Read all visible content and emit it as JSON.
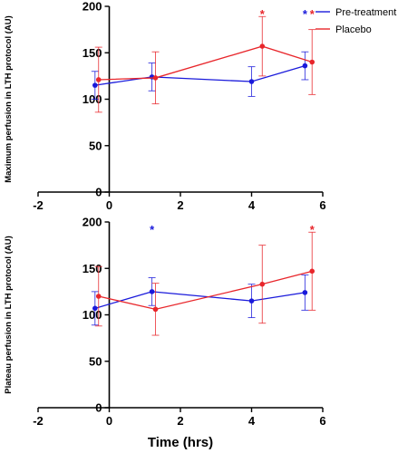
{
  "colors": {
    "pre": "#1a1adb",
    "placebo": "#e8262b",
    "axis": "#000000"
  },
  "chart_data": [
    {
      "type": "line",
      "ylabel": "Maximum perfusion in LTH protocol (AU)",
      "xlabel": "",
      "xlim": [
        -2,
        6
      ],
      "ylim": [
        0,
        200
      ],
      "xticks": [
        "-2",
        "0",
        "2",
        "4",
        "6"
      ],
      "yticks": [
        "0",
        "50",
        "100",
        "150",
        "200"
      ],
      "legend": "top-right",
      "series": [
        {
          "name": "Pre-treatment",
          "color_key": "pre",
          "x": [
            -0.4,
            1.2,
            4.0,
            5.5
          ],
          "y": [
            115,
            124,
            119,
            136
          ],
          "err": [
            15,
            15,
            16,
            15
          ]
        },
        {
          "name": "Placebo",
          "color_key": "placebo",
          "x": [
            -0.3,
            1.3,
            4.3,
            5.7
          ],
          "y": [
            121,
            123,
            157,
            140
          ],
          "err": [
            35,
            28,
            32,
            35
          ]
        }
      ],
      "annotations": [
        {
          "text": "*",
          "x": 4.3,
          "y": 195,
          "color_key": "placebo"
        },
        {
          "text": "*",
          "x": 5.5,
          "y": 195,
          "color_key": "pre"
        },
        {
          "text": "*",
          "x": 5.7,
          "y": 195,
          "color_key": "placebo"
        }
      ]
    },
    {
      "type": "line",
      "ylabel": "Plateau perfusion in LTH protocol (AU)",
      "xlabel": "Time (hrs)",
      "xlim": [
        -2,
        6
      ],
      "ylim": [
        0,
        200
      ],
      "xticks": [
        "-2",
        "0",
        "2",
        "4",
        "6"
      ],
      "yticks": [
        "0",
        "50",
        "100",
        "150",
        "200"
      ],
      "legend": "none",
      "series": [
        {
          "name": "Pre-treatment",
          "color_key": "pre",
          "x": [
            -0.4,
            1.2,
            4.0,
            5.5
          ],
          "y": [
            107,
            125,
            115,
            124
          ],
          "err": [
            18,
            15,
            18,
            19
          ]
        },
        {
          "name": "Placebo",
          "color_key": "placebo",
          "x": [
            -0.3,
            1.3,
            4.3,
            5.7
          ],
          "y": [
            120,
            106,
            133,
            147
          ],
          "err": [
            32,
            28,
            42,
            42
          ]
        }
      ],
      "annotations": [
        {
          "text": "*",
          "x": 1.2,
          "y": 195,
          "color_key": "pre"
        },
        {
          "text": "*",
          "x": 5.7,
          "y": 195,
          "color_key": "placebo"
        }
      ]
    }
  ]
}
